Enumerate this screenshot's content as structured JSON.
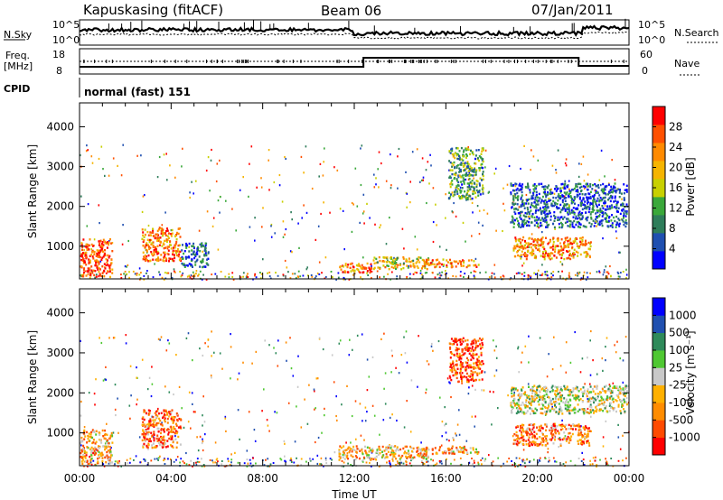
{
  "header": {
    "station": "Kapuskasing (fitACF)",
    "beam": "Beam 06",
    "date": "07/Jan/2011",
    "cpid_label": "CPID",
    "cpid_value": "normal (fast) 151"
  },
  "strips": {
    "nsky_label": "N.Sky",
    "nsearch_label": "N.Search",
    "noise_ticks": [
      "10^5",
      "10^0"
    ],
    "freq_label_1": "Freq.",
    "freq_label_2": "[MHz]",
    "freq_ticks": [
      "18",
      "8"
    ],
    "nave_label": "Nave",
    "nave_ticks": [
      "60",
      "0"
    ]
  },
  "colors": {
    "power": [
      "#0000ff",
      "#1f4fb0",
      "#2e7d5a",
      "#3aa83a",
      "#c8d000",
      "#f5b400",
      "#ff8a00",
      "#ff5000",
      "#ff0000"
    ],
    "velocity": [
      "#ff0000",
      "#ff4a00",
      "#ff8c00",
      "#ffb000",
      "#c8c8c8",
      "#4fc832",
      "#2e8a5a",
      "#2050b0",
      "#0000ff"
    ]
  },
  "chart_data": [
    {
      "type": "heatmap",
      "panel": "power",
      "xlabel": "",
      "ylabel": "Slant Range [km]",
      "xlim": [
        0,
        24
      ],
      "ylim": [
        180,
        4600
      ],
      "yticks": [
        "1000",
        "2000",
        "3000",
        "4000"
      ],
      "colorbar_label": "Power [dB]",
      "colorbar_ticks": [
        "4",
        "8",
        "12",
        "16",
        "20",
        "24",
        "28"
      ],
      "colorbar_range": [
        0,
        32
      ],
      "regions": [
        {
          "t0": 0.0,
          "t1": 1.4,
          "r0": 250,
          "r1": 1200,
          "level": 0.85
        },
        {
          "t0": 2.7,
          "t1": 4.4,
          "r0": 650,
          "r1": 1500,
          "level": 0.75
        },
        {
          "t0": 4.4,
          "t1": 5.6,
          "r0": 500,
          "r1": 1100,
          "level": 0.2
        },
        {
          "t0": 11.3,
          "t1": 12.8,
          "r0": 350,
          "r1": 600,
          "level": 0.75
        },
        {
          "t0": 12.8,
          "t1": 15.2,
          "r0": 450,
          "r1": 750,
          "level": 0.55
        },
        {
          "t0": 15.0,
          "t1": 17.4,
          "r0": 500,
          "r1": 700,
          "level": 0.7
        },
        {
          "t0": 16.1,
          "t1": 17.6,
          "r0": 2200,
          "r1": 3500,
          "level": 0.35
        },
        {
          "t0": 18.9,
          "t1": 22.3,
          "r0": 700,
          "r1": 1250,
          "level": 0.7
        },
        {
          "t0": 18.8,
          "t1": 23.9,
          "r0": 1500,
          "r1": 2600,
          "level": 0.2
        }
      ]
    },
    {
      "type": "heatmap",
      "panel": "velocity",
      "xlabel": "Time UT",
      "ylabel": "Slant Range [km]",
      "xlim": [
        0,
        24
      ],
      "ylim": [
        180,
        4600
      ],
      "xticks": [
        "00:00",
        "04:00",
        "08:00",
        "12:00",
        "16:00",
        "20:00",
        "00:00"
      ],
      "yticks": [
        "1000",
        "2000",
        "3000",
        "4000"
      ],
      "colorbar_label": "Velocity [m s⁻¹]",
      "colorbar_ticks": [
        "1000",
        "500",
        "100",
        "25",
        "-25",
        "-100",
        "-500",
        "-1000"
      ],
      "regions": [
        {
          "t0": 0.0,
          "t1": 1.4,
          "r0": 250,
          "r1": 1100,
          "level": 0.35
        },
        {
          "t0": 2.7,
          "t1": 4.4,
          "r0": 650,
          "r1": 1600,
          "level": 0.25
        },
        {
          "t0": 11.3,
          "t1": 15.2,
          "r0": 350,
          "r1": 700,
          "level": 0.35
        },
        {
          "t0": 15.0,
          "t1": 17.4,
          "r0": 500,
          "r1": 700,
          "level": 0.35
        },
        {
          "t0": 16.1,
          "t1": 17.6,
          "r0": 2300,
          "r1": 3400,
          "level": 0.15
        },
        {
          "t0": 18.9,
          "t1": 22.3,
          "r0": 700,
          "r1": 1250,
          "level": 0.25
        },
        {
          "t0": 18.8,
          "t1": 23.9,
          "r0": 1500,
          "r1": 2200,
          "level": 0.5
        }
      ]
    }
  ]
}
